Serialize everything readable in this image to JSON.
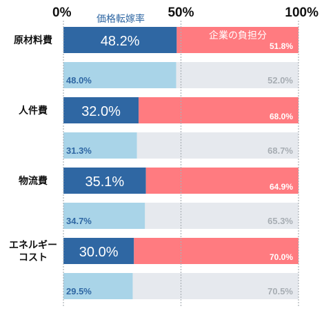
{
  "chart_data": {
    "type": "bar",
    "stacked": true,
    "orientation": "horizontal",
    "xlim": [
      0,
      100
    ],
    "x_ticks": [
      "0%",
      "50%",
      "100%"
    ],
    "series_labels": [
      "価格転嫁率",
      "企業の負担分"
    ],
    "categories": [
      "原材料費",
      "人件費",
      "物流費",
      "エネルギーコスト"
    ],
    "category_label_lines": [
      [
        "原材料費"
      ],
      [
        "人件費"
      ],
      [
        "物流費"
      ],
      [
        "エネルギー",
        "コスト"
      ]
    ],
    "rows": [
      {
        "category": "原材料費",
        "period": "current",
        "pass_through": 48.2,
        "burden": 51.8,
        "pass_label": "48.2%",
        "burden_label": "51.8%"
      },
      {
        "category": "原材料費",
        "period": "previous",
        "pass_through": 48.0,
        "burden": 52.0,
        "pass_label": "48.0%",
        "burden_label": "52.0%"
      },
      {
        "category": "人件費",
        "period": "current",
        "pass_through": 32.0,
        "burden": 68.0,
        "pass_label": "32.0%",
        "burden_label": "68.0%"
      },
      {
        "category": "人件費",
        "period": "previous",
        "pass_through": 31.3,
        "burden": 68.7,
        "pass_label": "31.3%",
        "burden_label": "68.7%"
      },
      {
        "category": "物流費",
        "period": "current",
        "pass_through": 35.1,
        "burden": 64.9,
        "pass_label": "35.1%",
        "burden_label": "64.9%"
      },
      {
        "category": "物流費",
        "period": "previous",
        "pass_through": 34.7,
        "burden": 65.3,
        "pass_label": "34.7%",
        "burden_label": "65.3%"
      },
      {
        "category": "エネルギーコスト",
        "period": "current",
        "pass_through": 30.0,
        "burden": 70.0,
        "pass_label": "30.0%",
        "burden_label": "70.0%"
      },
      {
        "category": "エネルギーコスト",
        "period": "previous",
        "pass_through": 29.5,
        "burden": 70.5,
        "pass_label": "29.5%",
        "burden_label": "70.5%"
      }
    ],
    "grid": true,
    "colors": {
      "current_pass": "#2f67a3",
      "current_burden": "#ff7b80",
      "previous_pass": "#a9d4e8",
      "previous_burden": "#e6e9ee",
      "previous_pass_text": "#2f67a3",
      "previous_burden_text": "#a7adb3",
      "grid": "#aab0b5",
      "tick_text": "#111111",
      "category_text": "#111111",
      "series_label_pass": "#2f67a3",
      "series_label_burden": "#ffffff"
    }
  }
}
